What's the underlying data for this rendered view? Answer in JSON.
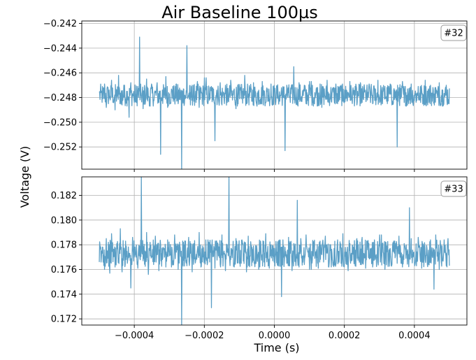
{
  "chart_data": {
    "type": "line",
    "title": "Air Baseline 100µs",
    "xlabel": "Time (s)",
    "ylabel": "Voltage (V)",
    "line_color": "#5b9fc6",
    "grid": true,
    "xlim": [
      -0.00055,
      0.00055
    ],
    "x_ticks": [
      -0.0004,
      -0.0002,
      0.0,
      0.0002,
      0.0004
    ],
    "x_tick_labels": [
      "−0.0004",
      "−0.0002",
      "0.0000",
      "0.0002",
      "0.0004"
    ],
    "x_range": [
      -0.0005,
      0.0005
    ],
    "panels": [
      {
        "badge": "#32",
        "badge_position": "top-right",
        "ylim": [
          -0.2538,
          -0.2418
        ],
        "y_ticks": [
          -0.252,
          -0.25,
          -0.248,
          -0.246,
          -0.244,
          -0.242
        ],
        "y_tick_labels": [
          "−0.252",
          "−0.250",
          "−0.248",
          "−0.246",
          "−0.244",
          "−0.242"
        ],
        "y_center": -0.2478,
        "y_noise": 0.0009,
        "y_min": -0.2538,
        "y_max": -0.2431,
        "y_samples": [
          -0.2476,
          -0.2481,
          -0.2469,
          -0.2488,
          -0.2472,
          -0.2479,
          -0.2466,
          -0.2484,
          -0.249,
          -0.2474,
          -0.2462,
          -0.2479,
          -0.2486,
          -0.247,
          -0.2481,
          -0.2475,
          -0.2496,
          -0.2468,
          -0.2477,
          -0.2484,
          -0.2471,
          -0.2431,
          -0.248,
          -0.2489,
          -0.2473,
          -0.2465,
          -0.2479,
          -0.2487,
          -0.247,
          -0.2482,
          -0.2476,
          -0.2468,
          -0.2484,
          -0.2526,
          -0.2474,
          -0.248,
          -0.2463,
          -0.2488,
          -0.2477,
          -0.2471,
          -0.2482,
          -0.2469,
          -0.2485,
          -0.2476,
          -0.2538,
          -0.2473,
          -0.2481,
          -0.2438,
          -0.2478,
          -0.2486,
          -0.247,
          -0.2483,
          -0.2475,
          -0.2467,
          -0.2488,
          -0.2472,
          -0.2479,
          -0.2464,
          -0.2485,
          -0.2477,
          -0.2471,
          -0.2482,
          -0.2515,
          -0.2474,
          -0.248,
          -0.2468,
          -0.2486,
          -0.2476,
          -0.247,
          -0.2484,
          -0.2478,
          -0.2466,
          -0.2482,
          -0.2473,
          -0.2489,
          -0.247,
          -0.2481,
          -0.2476,
          -0.2462,
          -0.2485,
          -0.2477,
          -0.2472,
          -0.2483,
          -0.2468,
          -0.2479,
          -0.2487,
          -0.2474,
          -0.2481,
          -0.2467,
          -0.2478,
          -0.2484,
          -0.2473,
          -0.248,
          -0.2469,
          -0.2486,
          -0.2475,
          -0.2477,
          -0.2483,
          -0.2472,
          -0.248,
          -0.2523,
          -0.247,
          -0.2476,
          -0.2484,
          -0.2473,
          -0.2455,
          -0.2479,
          -0.2486,
          -0.2468,
          -0.2482,
          -0.2475,
          -0.247,
          -0.2485,
          -0.2478,
          -0.2467,
          -0.2483,
          -0.2476,
          -0.2472,
          -0.2481,
          -0.2469,
          -0.2488,
          -0.2474,
          -0.2479,
          -0.2466,
          -0.2484,
          -0.2477,
          -0.2473,
          -0.2481,
          -0.2469,
          -0.2485,
          -0.2476,
          -0.247,
          -0.2483,
          -0.2474,
          -0.2478,
          -0.2467,
          -0.2482,
          -0.2476,
          -0.2471,
          -0.2486,
          -0.2479,
          -0.2468,
          -0.2484,
          -0.2472,
          -0.2477,
          -0.2482,
          -0.2469,
          -0.2476,
          -0.2485,
          -0.2473,
          -0.248,
          -0.2466,
          -0.2484,
          -0.2475,
          -0.2471,
          -0.2483,
          -0.2477,
          -0.2469,
          -0.2486,
          -0.2474,
          -0.2478,
          -0.252,
          -0.2472,
          -0.2481,
          -0.2467,
          -0.2484,
          -0.2476,
          -0.2473,
          -0.248,
          -0.2469,
          -0.2485,
          -0.2477,
          -0.2471,
          -0.2482,
          -0.2474,
          -0.2479,
          -0.2466,
          -0.2484,
          -0.2475,
          -0.247,
          -0.2483,
          -0.2477,
          -0.2472,
          -0.248,
          -0.2468,
          -0.2486,
          -0.2474,
          -0.2478,
          -0.247,
          -0.2485
        ]
      },
      {
        "badge": "#33",
        "badge_position": "top-right",
        "ylim": [
          0.1715,
          0.1835
        ],
        "y_ticks": [
          0.172,
          0.174,
          0.176,
          0.178,
          0.18,
          0.182
        ],
        "y_tick_labels": [
          "0.172",
          "0.174",
          "0.176",
          "0.178",
          "0.180",
          "0.182"
        ],
        "y_center": 0.1773,
        "y_noise": 0.0011,
        "y_min": 0.1715,
        "y_max": 0.1835,
        "y_samples": [
          0.1766,
          0.1778,
          0.176,
          0.1785,
          0.1771,
          0.1757,
          0.1789,
          0.1774,
          0.1762,
          0.1781,
          0.1769,
          0.1793,
          0.1758,
          0.1776,
          0.1783,
          0.1765,
          0.1773,
          0.1745,
          0.1786,
          0.177,
          0.1761,
          0.1779,
          0.1835,
          0.1767,
          0.1775,
          0.179,
          0.1756,
          0.1782,
          0.177,
          0.1764,
          0.1787,
          0.1772,
          0.1759,
          0.178,
          0.1768,
          0.1777,
          0.1762,
          0.1784,
          0.1771,
          0.1765,
          0.1788,
          0.1774,
          0.176,
          0.1779,
          0.1715,
          0.1782,
          0.1769,
          0.1763,
          0.1786,
          0.1773,
          0.1758,
          0.1781,
          0.1767,
          0.1776,
          0.179,
          0.1762,
          0.1779,
          0.177,
          0.1784,
          0.1766,
          0.1729,
          0.1775,
          0.1761,
          0.1783,
          0.1771,
          0.1764,
          0.1788,
          0.1773,
          0.1759,
          0.178,
          0.1835,
          0.1768,
          0.1776,
          0.1762,
          0.1785,
          0.177,
          0.1765,
          0.1781,
          0.1774,
          0.1758,
          0.1787,
          0.1771,
          0.1763,
          0.1779,
          0.1769,
          0.1776,
          0.176,
          0.1783,
          0.1772,
          0.1766,
          0.1789,
          0.1774,
          0.1761,
          0.178,
          0.1767,
          0.1777,
          0.1763,
          0.1784,
          0.1738,
          0.177,
          0.1778,
          0.1765,
          0.1786,
          0.1773,
          0.1759,
          0.1781,
          0.1768,
          0.1816,
          0.1762,
          0.1785,
          0.1771,
          0.1764,
          0.1788,
          0.1774,
          0.176,
          0.1779,
          0.1769,
          0.1776,
          0.1761,
          0.1783,
          0.1772,
          0.1766,
          0.1787,
          0.1773,
          0.1762,
          0.178,
          0.1768,
          0.1777,
          0.1764,
          0.1784,
          0.1771,
          0.1765,
          0.1789,
          0.1774,
          0.1759,
          0.1781,
          0.1767,
          0.1778,
          0.1763,
          0.1785,
          0.177,
          0.1764,
          0.1786,
          0.1773,
          0.1761,
          0.178,
          0.1769,
          0.1776,
          0.1762,
          0.1784,
          0.1772,
          0.1766,
          0.1788,
          0.1774,
          0.176,
          0.1779,
          0.1768,
          0.1777,
          0.1764,
          0.1783,
          0.1771,
          0.1765,
          0.1787,
          0.1773,
          0.1762,
          0.1781,
          0.1769,
          0.1776,
          0.181,
          0.1785,
          0.177,
          0.1763,
          0.1786,
          0.1772,
          0.1761,
          0.1779,
          0.1768,
          0.1777,
          0.1764,
          0.1784,
          0.1771,
          0.1744,
          0.1788,
          0.1774,
          0.176,
          0.178,
          0.1767,
          0.1776,
          0.1763,
          0.1785
        ]
      }
    ]
  }
}
